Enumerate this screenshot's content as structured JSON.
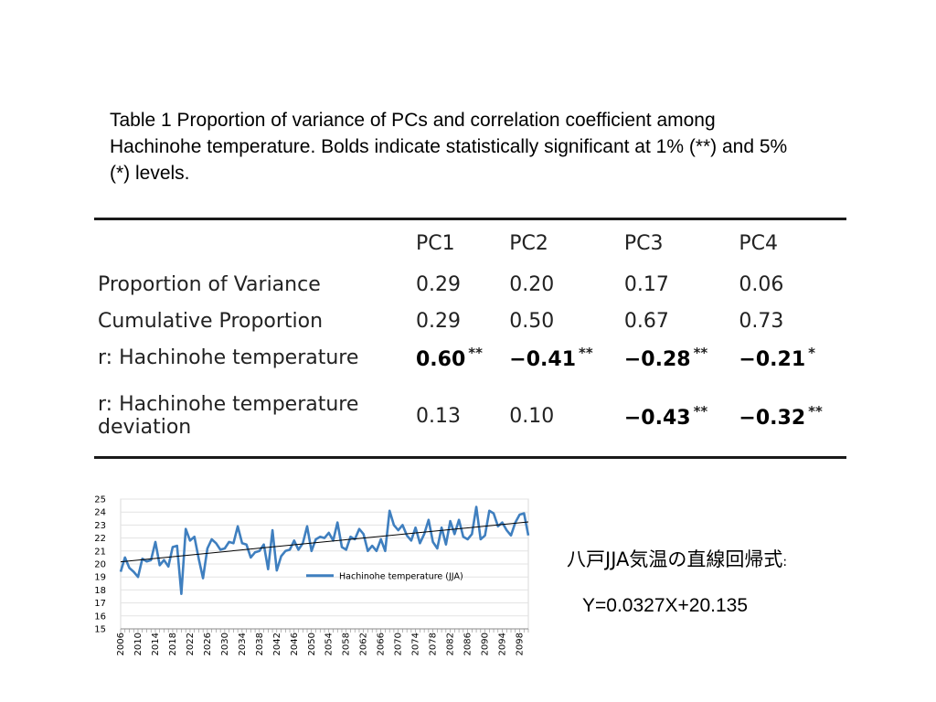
{
  "caption": "Table 1 Proportion of variance of PCs and correlation coefficient among Hachinohe temperature. Bolds indicate statistically significant at 1% (**) and 5% (*) levels.",
  "table": {
    "headers": [
      "",
      "PC1",
      "PC2",
      "PC3",
      "PC4"
    ],
    "rows": [
      {
        "label": [
          "Proportion of Variance"
        ],
        "cells": [
          {
            "v": "0.29",
            "bold": false,
            "sig": ""
          },
          {
            "v": "0.20",
            "bold": false,
            "sig": ""
          },
          {
            "v": "0.17",
            "bold": false,
            "sig": ""
          },
          {
            "v": "0.06",
            "bold": false,
            "sig": ""
          }
        ]
      },
      {
        "label": [
          "Cumulative Proportion"
        ],
        "cells": [
          {
            "v": "0.29",
            "bold": false,
            "sig": ""
          },
          {
            "v": "0.50",
            "bold": false,
            "sig": ""
          },
          {
            "v": "0.67",
            "bold": false,
            "sig": ""
          },
          {
            "v": "0.73",
            "bold": false,
            "sig": ""
          }
        ]
      },
      {
        "label": [
          "r: Hachinohe temperature"
        ],
        "cells": [
          {
            "v": "0.60",
            "bold": true,
            "sig": "**"
          },
          {
            "v": "−0.41",
            "bold": true,
            "sig": "**"
          },
          {
            "v": "−0.28",
            "bold": true,
            "sig": "**"
          },
          {
            "v": "−0.21",
            "bold": true,
            "sig": "*"
          }
        ]
      },
      {
        "label": [
          "r: Hachinohe temperature",
          "deviation"
        ],
        "cells": [
          {
            "v": "0.13",
            "bold": false,
            "sig": ""
          },
          {
            "v": "0.10",
            "bold": false,
            "sig": ""
          },
          {
            "v": "−0.43",
            "bold": true,
            "sig": "**"
          },
          {
            "v": "−0.32",
            "bold": true,
            "sig": "**"
          }
        ]
      }
    ]
  },
  "chart_data": {
    "type": "line",
    "title": "",
    "xlabel": "",
    "ylabel": "",
    "ylim": [
      15,
      25
    ],
    "yticks": [
      15,
      16,
      17,
      18,
      19,
      20,
      21,
      22,
      23,
      24,
      25
    ],
    "xticks": [
      "2006",
      "2010",
      "2014",
      "2018",
      "2022",
      "2026",
      "2030",
      "2034",
      "2038",
      "2042",
      "2046",
      "2050",
      "2054",
      "2058",
      "2062",
      "2066",
      "2070",
      "2074",
      "2078",
      "2082",
      "2086",
      "2090",
      "2094",
      "2098"
    ],
    "grid": "horizontal",
    "legend_position": "bottom-right",
    "x_start": 2006,
    "x_end": 2100,
    "series": [
      {
        "name": "Hachinohe temperature (JJA)",
        "color": "#3f7fbf",
        "values": [
          19.4,
          20.5,
          19.7,
          19.4,
          19.0,
          20.4,
          20.2,
          20.3,
          21.7,
          19.9,
          20.3,
          19.8,
          21.3,
          21.4,
          17.7,
          22.7,
          21.8,
          22.1,
          20.4,
          18.9,
          21.2,
          21.9,
          21.6,
          21.1,
          21.2,
          21.7,
          21.6,
          22.9,
          21.6,
          21.5,
          20.5,
          20.9,
          21.0,
          21.5,
          19.6,
          22.6,
          19.5,
          20.6,
          21.0,
          21.1,
          21.8,
          21.1,
          21.6,
          22.9,
          21.0,
          21.9,
          22.1,
          22.0,
          22.4,
          21.8,
          23.2,
          21.3,
          21.1,
          22.1,
          21.9,
          22.7,
          22.3,
          21.0,
          21.4,
          21.0,
          21.9,
          21.0,
          24.1,
          23.0,
          22.6,
          23.0,
          22.2,
          21.8,
          22.8,
          21.6,
          22.3,
          23.4,
          21.7,
          21.2,
          22.8,
          21.5,
          23.3,
          22.3,
          23.4,
          22.1,
          21.9,
          22.3,
          24.4,
          21.9,
          22.2,
          24.1,
          23.9,
          22.9,
          23.2,
          22.6,
          22.2,
          23.2,
          23.8,
          23.9,
          22.2
        ]
      }
    ],
    "trendline": {
      "intercept": 20.135,
      "slope": 0.0327
    }
  },
  "regression": {
    "title": "八戸JJA気温の直線回帰式",
    "colon": ":",
    "equation": "Y=0.0327X+20.135"
  }
}
